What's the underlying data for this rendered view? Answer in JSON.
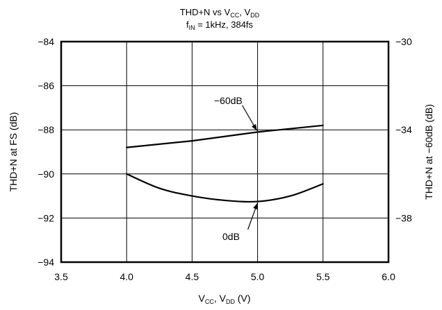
{
  "chart_data": {
    "type": "line",
    "title_line1": {
      "main": "THD+N vs V",
      "sub1": "CC",
      "sep": ", V",
      "sub2": "DD"
    },
    "title_line2": {
      "pre": "f",
      "sub": "IN",
      "post": " = 1kHz, 384fs"
    },
    "xlabel": {
      "pre": "V",
      "sub1": "CC",
      "mid": ", V",
      "sub2": "DD",
      "post": " (V)"
    },
    "ylabel_left": "THD+N at FS (dB)",
    "ylabel_right": "THD+N at −60dB (dB)",
    "xlim": [
      3.5,
      6.0
    ],
    "ylim_left": [
      -94,
      -84
    ],
    "ylim_right": [
      -40,
      -30
    ],
    "x_ticks": [
      3.5,
      4.0,
      4.5,
      5.0,
      5.5,
      6.0
    ],
    "x_tick_labels": [
      "3.5",
      "4.0",
      "4.5",
      "5.0",
      "5.5",
      "6.0"
    ],
    "y_ticks_left": [
      -94,
      -92,
      -90,
      -88,
      -86,
      -84
    ],
    "y_tick_labels_left": [
      "−94",
      "−92",
      "−90",
      "−88",
      "−86",
      "−84"
    ],
    "y_ticks_right": [
      -38,
      -34,
      -30
    ],
    "y_tick_labels_right": [
      "−38",
      "−34",
      "−30"
    ],
    "grid": true,
    "series": [
      {
        "name": "0dB",
        "axis": "left",
        "x": [
          4.0,
          4.25,
          4.5,
          4.75,
          5.0,
          5.25,
          5.5
        ],
        "y": [
          -90.0,
          -90.65,
          -91.0,
          -91.2,
          -91.25,
          -91.0,
          -90.45
        ]
      },
      {
        "name": "−60dB",
        "axis": "right",
        "x": [
          4.0,
          4.5,
          5.0,
          5.5
        ],
        "y": [
          -34.8,
          -34.5,
          -34.1,
          -33.8
        ]
      }
    ],
    "annotations": [
      {
        "text": "−60dB",
        "series": "−60dB"
      },
      {
        "text": "0dB",
        "series": "0dB"
      }
    ]
  }
}
